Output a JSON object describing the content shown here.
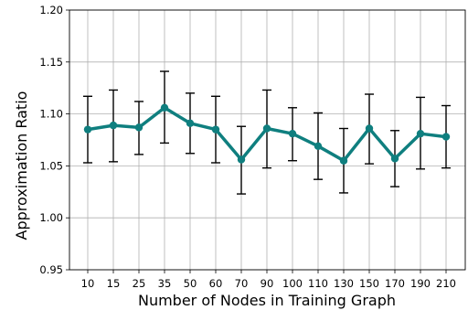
{
  "chart_data": {
    "type": "line",
    "xlabel": "Number of Nodes in Training Graph",
    "ylabel": "Approximation Ratio",
    "categories": [
      "10",
      "15",
      "25",
      "35",
      "50",
      "60",
      "70",
      "90",
      "100",
      "110",
      "130",
      "150",
      "170",
      "190",
      "210"
    ],
    "series": [
      {
        "values": [
          1.085,
          1.089,
          1.087,
          1.106,
          1.091,
          1.085,
          1.056,
          1.086,
          1.081,
          1.069,
          1.055,
          1.086,
          1.057,
          1.081,
          1.078
        ],
        "error_low": [
          1.053,
          1.054,
          1.061,
          1.072,
          1.062,
          1.053,
          1.023,
          1.048,
          1.055,
          1.037,
          1.024,
          1.052,
          1.03,
          1.047,
          1.048
        ],
        "error_high": [
          1.117,
          1.123,
          1.112,
          1.141,
          1.12,
          1.117,
          1.088,
          1.123,
          1.106,
          1.101,
          1.086,
          1.119,
          1.084,
          1.116,
          1.108
        ]
      }
    ],
    "ylim": [
      0.95,
      1.2
    ],
    "yticks": [
      "0.95",
      "1.00",
      "1.05",
      "1.10",
      "1.15",
      "1.20"
    ],
    "grid": true,
    "colors": {
      "line": "#0f7f7f",
      "errorbar": "#000000",
      "grid": "#b0b0b0"
    }
  }
}
